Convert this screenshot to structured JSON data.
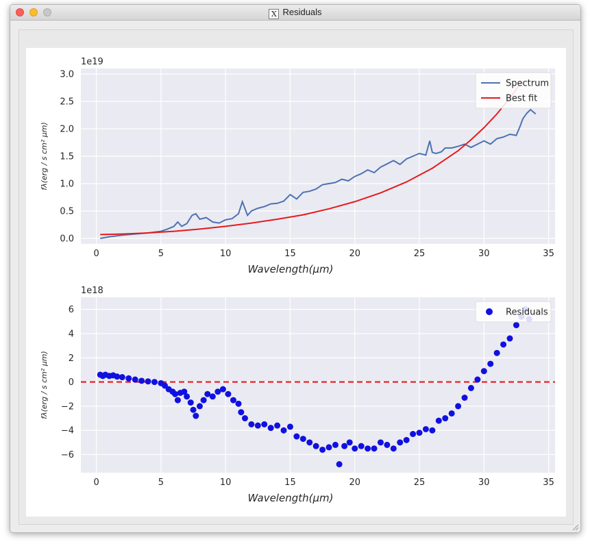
{
  "window": {
    "title": "Residuals",
    "app_icon": "x11-icon"
  },
  "chart_data": [
    {
      "type": "line",
      "xlabel": "Wavelength(μm)",
      "ylabel": "fλ(erg / s cm² μm)",
      "offset_label": "1e19",
      "xlim": [
        -1.2,
        35.5
      ],
      "ylim": [
        -0.1,
        3.1
      ],
      "xticks": [
        0,
        5,
        10,
        15,
        20,
        25,
        30,
        35
      ],
      "yticks": [
        0.0,
        0.5,
        1.0,
        1.5,
        2.0,
        2.5,
        3.0
      ],
      "ytick_labels": [
        "0.0",
        "0.5",
        "1.0",
        "1.5",
        "2.0",
        "2.5",
        "3.0"
      ],
      "grid": true,
      "legend": "top-right",
      "series": [
        {
          "name": "Spectrum",
          "color": "#4c72b0",
          "x": [
            0.3,
            1,
            2,
            3,
            4,
            5,
            5.5,
            6,
            6.3,
            6.6,
            7,
            7.4,
            7.7,
            8,
            8.5,
            9,
            9.5,
            10,
            10.5,
            11,
            11.3,
            11.7,
            12,
            12.5,
            13,
            13.5,
            14,
            14.5,
            15,
            15.5,
            16,
            16.5,
            17,
            17.5,
            18,
            18.5,
            19,
            19.5,
            20,
            20.5,
            21,
            21.5,
            22,
            22.5,
            23,
            23.5,
            24,
            24.5,
            25,
            25.5,
            25.8,
            26,
            26.3,
            26.7,
            27,
            27.5,
            28,
            28.5,
            29,
            29.5,
            30,
            30.5,
            31,
            31.5,
            32,
            32.5,
            32.8,
            33,
            33.3,
            33.6,
            34
          ],
          "values": [
            0.0,
            0.03,
            0.06,
            0.08,
            0.1,
            0.13,
            0.17,
            0.22,
            0.3,
            0.22,
            0.27,
            0.42,
            0.45,
            0.35,
            0.38,
            0.3,
            0.28,
            0.34,
            0.36,
            0.45,
            0.67,
            0.42,
            0.5,
            0.55,
            0.58,
            0.63,
            0.64,
            0.68,
            0.8,
            0.72,
            0.84,
            0.86,
            0.9,
            0.98,
            1.0,
            1.02,
            1.08,
            1.05,
            1.13,
            1.18,
            1.25,
            1.2,
            1.3,
            1.36,
            1.42,
            1.35,
            1.45,
            1.5,
            1.55,
            1.52,
            1.78,
            1.57,
            1.55,
            1.58,
            1.65,
            1.65,
            1.68,
            1.72,
            1.66,
            1.72,
            1.78,
            1.72,
            1.82,
            1.85,
            1.9,
            1.88,
            2.05,
            2.18,
            2.28,
            2.35,
            2.27
          ]
        },
        {
          "name": "Best fit",
          "color": "#e41a1c",
          "x": [
            0.3,
            2,
            4,
            6,
            8,
            10,
            12,
            14,
            16,
            18,
            20,
            22,
            24,
            26,
            28,
            29,
            30,
            31,
            32,
            32.9
          ],
          "values": [
            0.07,
            0.08,
            0.1,
            0.13,
            0.17,
            0.22,
            0.28,
            0.35,
            0.43,
            0.54,
            0.67,
            0.83,
            1.03,
            1.28,
            1.6,
            1.8,
            2.02,
            2.27,
            2.56,
            2.85
          ]
        }
      ]
    },
    {
      "type": "scatter",
      "xlabel": "Wavelength(μm)",
      "ylabel": "fλ(erg / s cm² μm)",
      "offset_label": "1e18",
      "xlim": [
        -1.2,
        35.5
      ],
      "ylim": [
        -7.5,
        7.0
      ],
      "xticks": [
        0,
        5,
        10,
        15,
        20,
        25,
        30,
        35
      ],
      "yticks": [
        -6,
        -4,
        -2,
        0,
        2,
        4,
        6
      ],
      "ytick_labels": [
        "−6",
        "−4",
        "−2",
        "0",
        "2",
        "4",
        "6"
      ],
      "grid": true,
      "legend": "top-right",
      "zero_line": {
        "y": 0,
        "color": "#e41a1c",
        "style": "dashed"
      },
      "series": [
        {
          "name": "Residuals",
          "color": "#1010e0",
          "x": [
            0.3,
            0.5,
            0.7,
            1.0,
            1.3,
            1.6,
            2.0,
            2.5,
            3.0,
            3.5,
            4.0,
            4.5,
            5.0,
            5.3,
            5.6,
            5.9,
            6.1,
            6.3,
            6.5,
            6.8,
            7.0,
            7.3,
            7.5,
            7.7,
            8.0,
            8.3,
            8.6,
            9.0,
            9.4,
            9.8,
            10.2,
            10.6,
            11.0,
            11.2,
            11.5,
            12.0,
            12.5,
            13.0,
            13.5,
            14.0,
            14.5,
            15.0,
            15.5,
            16.0,
            16.5,
            17.0,
            17.5,
            18.0,
            18.5,
            18.8,
            19.2,
            19.6,
            20.0,
            20.5,
            21.0,
            21.5,
            22.0,
            22.5,
            23.0,
            23.5,
            24.0,
            24.5,
            25.0,
            25.5,
            26.0,
            26.5,
            27.0,
            27.5,
            28.0,
            28.5,
            29.0,
            29.5,
            30.0,
            30.5,
            31.0,
            31.5,
            32.0,
            32.5,
            32.9,
            33.2,
            33.5
          ],
          "values": [
            0.6,
            0.5,
            0.6,
            0.5,
            0.55,
            0.45,
            0.4,
            0.3,
            0.2,
            0.1,
            0.05,
            0.0,
            -0.1,
            -0.3,
            -0.6,
            -0.8,
            -1.0,
            -1.5,
            -0.9,
            -0.8,
            -1.2,
            -1.7,
            -2.3,
            -2.8,
            -2.0,
            -1.5,
            -1.0,
            -1.2,
            -0.8,
            -0.6,
            -1.0,
            -1.5,
            -1.8,
            -2.5,
            -3.0,
            -3.5,
            -3.6,
            -3.5,
            -3.8,
            -3.6,
            -4.0,
            -3.7,
            -4.5,
            -4.7,
            -5.0,
            -5.3,
            -5.6,
            -5.4,
            -5.2,
            -6.8,
            -5.3,
            -5.0,
            -5.5,
            -5.3,
            -5.5,
            -5.5,
            -5.0,
            -5.2,
            -5.5,
            -5.0,
            -4.8,
            -4.3,
            -4.2,
            -3.9,
            -4.0,
            -3.2,
            -3.0,
            -2.6,
            -2.0,
            -1.3,
            -0.5,
            0.2,
            0.9,
            1.5,
            2.4,
            3.1,
            3.6,
            4.7,
            5.4,
            6.0,
            5.2
          ]
        }
      ]
    }
  ]
}
